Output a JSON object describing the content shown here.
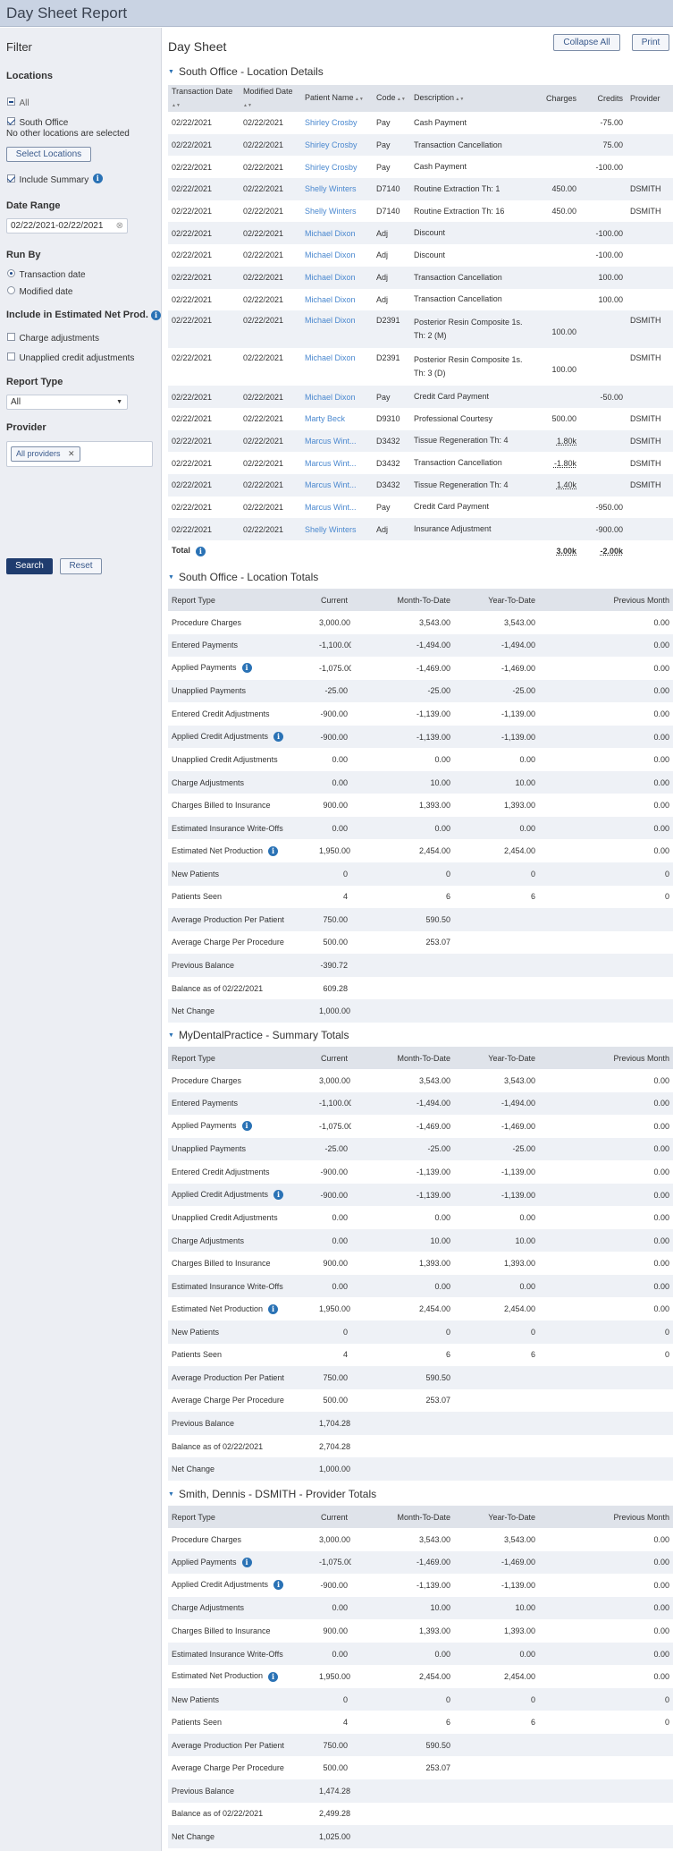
{
  "app": {
    "title": "Day Sheet Report"
  },
  "filter": {
    "title": "Filter",
    "locations_label": "Locations",
    "all_label": "All",
    "south_office_label": "South Office",
    "no_other_text": "No other locations are selected",
    "select_locations_label": "Select Locations",
    "include_summary_label": "Include Summary",
    "date_range_label": "Date Range",
    "date_range_value": "02/22/2021-02/22/2021",
    "run_by_label": "Run By",
    "transaction_date_label": "Transaction date",
    "modified_date_label": "Modified date",
    "include_net_label": "Include in Estimated Net Prod.",
    "charge_adj_label": "Charge adjustments",
    "unapplied_credit_label": "Unapplied credit adjustments",
    "report_type_label": "Report Type",
    "report_type_value": "All",
    "provider_label": "Provider",
    "provider_chip": "All providers",
    "search_label": "Search",
    "reset_label": "Reset"
  },
  "header": {
    "title": "Day Sheet",
    "collapse_label": "Collapse All",
    "print_label": "Print"
  },
  "details": {
    "title": "South Office - Location Details",
    "columns": [
      "Transaction Date",
      "Modified Date",
      "Patient Name",
      "Code",
      "Description",
      "Charges",
      "Credits",
      "Provider"
    ],
    "rows": [
      [
        "02/22/2021",
        "02/22/2021",
        "Shirley Crosby",
        "Pay",
        "Cash Payment",
        "",
        "-75.00",
        ""
      ],
      [
        "02/22/2021",
        "02/22/2021",
        "Shirley Crosby",
        "Pay",
        "Transaction Cancellation",
        "",
        "75.00",
        ""
      ],
      [
        "02/22/2021",
        "02/22/2021",
        "Shirley Crosby",
        "Pay",
        "Cash Payment",
        "",
        "-100.00",
        ""
      ],
      [
        "02/22/2021",
        "02/22/2021",
        "Shelly Winters",
        "D7140",
        "Routine Extraction Th: 1",
        "450.00",
        "",
        "DSMITH"
      ],
      [
        "02/22/2021",
        "02/22/2021",
        "Shelly Winters",
        "D7140",
        "Routine Extraction Th: 16",
        "450.00",
        "",
        "DSMITH"
      ],
      [
        "02/22/2021",
        "02/22/2021",
        "Michael Dixon",
        "Adj",
        "Discount",
        "",
        "-100.00",
        ""
      ],
      [
        "02/22/2021",
        "02/22/2021",
        "Michael Dixon",
        "Adj",
        "Discount",
        "",
        "-100.00",
        ""
      ],
      [
        "02/22/2021",
        "02/22/2021",
        "Michael Dixon",
        "Adj",
        "Transaction Cancellation",
        "",
        "100.00",
        ""
      ],
      [
        "02/22/2021",
        "02/22/2021",
        "Michael Dixon",
        "Adj",
        "Transaction Cancellation",
        "",
        "100.00",
        ""
      ],
      [
        "02/22/2021",
        "02/22/2021",
        "Michael Dixon",
        "D2391",
        "Posterior Resin Composite 1s. Th: 2 (M)",
        "100.00",
        "",
        "DSMITH"
      ],
      [
        "02/22/2021",
        "02/22/2021",
        "Michael Dixon",
        "D2391",
        "Posterior Resin Composite 1s. Th: 3 (D)",
        "100.00",
        "",
        "DSMITH"
      ],
      [
        "02/22/2021",
        "02/22/2021",
        "Michael Dixon",
        "Pay",
        "Credit Card Payment",
        "",
        "-50.00",
        ""
      ],
      [
        "02/22/2021",
        "02/22/2021",
        "Marty Beck",
        "D9310",
        "Professional Courtesy",
        "500.00",
        "",
        "DSMITH"
      ],
      [
        "02/22/2021",
        "02/22/2021",
        "Marcus Wint...",
        "D3432",
        "Tissue Regeneration Th: 4",
        "1.80k",
        "",
        "DSMITH"
      ],
      [
        "02/22/2021",
        "02/22/2021",
        "Marcus Wint...",
        "D3432",
        "Transaction Cancellation",
        "-1.80k",
        "",
        "DSMITH"
      ],
      [
        "02/22/2021",
        "02/22/2021",
        "Marcus Wint...",
        "D3432",
        "Tissue Regeneration Th: 4",
        "1.40k",
        "",
        "DSMITH"
      ],
      [
        "02/22/2021",
        "02/22/2021",
        "Marcus Wint...",
        "Pay",
        "Credit Card Payment",
        "",
        "-950.00",
        ""
      ],
      [
        "02/22/2021",
        "02/22/2021",
        "Shelly Winters",
        "Adj",
        "Insurance Adjustment",
        "",
        "-900.00",
        ""
      ]
    ],
    "total_label": "Total",
    "total_charges": "3.00k",
    "total_credits": "-2.00k"
  },
  "summary_columns": [
    "Report Type",
    "Current",
    "Month-To-Date",
    "Year-To-Date",
    "Previous Month"
  ],
  "location_totals": {
    "title": "South Office - Location Totals",
    "rows": [
      [
        "Procedure Charges",
        "3,000.00",
        "3,543.00",
        "3,543.00",
        "0.00"
      ],
      [
        "Entered Payments",
        "-1,100.00",
        "-1,494.00",
        "-1,494.00",
        "0.00"
      ],
      [
        "Applied Payments",
        "-1,075.00",
        "-1,469.00",
        "-1,469.00",
        "0.00"
      ],
      [
        "Unapplied Payments",
        "-25.00",
        "-25.00",
        "-25.00",
        "0.00"
      ],
      [
        "Entered Credit Adjustments",
        "-900.00",
        "-1,139.00",
        "-1,139.00",
        "0.00"
      ],
      [
        "Applied Credit Adjustments",
        "-900.00",
        "-1,139.00",
        "-1,139.00",
        "0.00"
      ],
      [
        "Unapplied Credit Adjustments",
        "0.00",
        "0.00",
        "0.00",
        "0.00"
      ],
      [
        "Charge Adjustments",
        "0.00",
        "10.00",
        "10.00",
        "0.00"
      ],
      [
        "Charges Billed to Insurance",
        "900.00",
        "1,393.00",
        "1,393.00",
        "0.00"
      ],
      [
        "Estimated Insurance Write-Offs",
        "0.00",
        "0.00",
        "0.00",
        "0.00"
      ],
      [
        "Estimated Net Production",
        "1,950.00",
        "2,454.00",
        "2,454.00",
        "0.00"
      ],
      [
        "New Patients",
        "0",
        "0",
        "0",
        "0"
      ],
      [
        "Patients Seen",
        "4",
        "6",
        "6",
        "0"
      ],
      [
        "Average Production Per Patient",
        "750.00",
        "590.50",
        "",
        ""
      ],
      [
        "Average Charge Per Procedure",
        "500.00",
        "253.07",
        "",
        ""
      ],
      [
        "Previous Balance",
        "-390.72",
        "",
        "",
        ""
      ],
      [
        "Balance as of 02/22/2021",
        "609.28",
        "",
        "",
        ""
      ],
      [
        "Net Change",
        "1,000.00",
        "",
        "",
        ""
      ]
    ]
  },
  "summary_totals": {
    "title": "MyDentalPractice - Summary Totals",
    "rows": [
      [
        "Procedure Charges",
        "3,000.00",
        "3,543.00",
        "3,543.00",
        "0.00"
      ],
      [
        "Entered Payments",
        "-1,100.00",
        "-1,494.00",
        "-1,494.00",
        "0.00"
      ],
      [
        "Applied Payments",
        "-1,075.00",
        "-1,469.00",
        "-1,469.00",
        "0.00"
      ],
      [
        "Unapplied Payments",
        "-25.00",
        "-25.00",
        "-25.00",
        "0.00"
      ],
      [
        "Entered Credit Adjustments",
        "-900.00",
        "-1,139.00",
        "-1,139.00",
        "0.00"
      ],
      [
        "Applied Credit Adjustments",
        "-900.00",
        "-1,139.00",
        "-1,139.00",
        "0.00"
      ],
      [
        "Unapplied Credit Adjustments",
        "0.00",
        "0.00",
        "0.00",
        "0.00"
      ],
      [
        "Charge Adjustments",
        "0.00",
        "10.00",
        "10.00",
        "0.00"
      ],
      [
        "Charges Billed to Insurance",
        "900.00",
        "1,393.00",
        "1,393.00",
        "0.00"
      ],
      [
        "Estimated Insurance Write-Offs",
        "0.00",
        "0.00",
        "0.00",
        "0.00"
      ],
      [
        "Estimated Net Production",
        "1,950.00",
        "2,454.00",
        "2,454.00",
        "0.00"
      ],
      [
        "New Patients",
        "0",
        "0",
        "0",
        "0"
      ],
      [
        "Patients Seen",
        "4",
        "6",
        "6",
        "0"
      ],
      [
        "Average Production Per Patient",
        "750.00",
        "590.50",
        "",
        ""
      ],
      [
        "Average Charge Per Procedure",
        "500.00",
        "253.07",
        "",
        ""
      ],
      [
        "Previous Balance",
        "1,704.28",
        "",
        "",
        ""
      ],
      [
        "Balance as of 02/22/2021",
        "2,704.28",
        "",
        "",
        ""
      ],
      [
        "Net Change",
        "1,000.00",
        "",
        "",
        ""
      ]
    ]
  },
  "provider_totals": {
    "title": "Smith, Dennis - DSMITH - Provider Totals",
    "rows": [
      [
        "Procedure Charges",
        "3,000.00",
        "3,543.00",
        "3,543.00",
        "0.00"
      ],
      [
        "Applied Payments",
        "-1,075.00",
        "-1,469.00",
        "-1,469.00",
        "0.00"
      ],
      [
        "Applied Credit Adjustments",
        "-900.00",
        "-1,139.00",
        "-1,139.00",
        "0.00"
      ],
      [
        "Charge Adjustments",
        "0.00",
        "10.00",
        "10.00",
        "0.00"
      ],
      [
        "Charges Billed to Insurance",
        "900.00",
        "1,393.00",
        "1,393.00",
        "0.00"
      ],
      [
        "Estimated Insurance Write-Offs",
        "0.00",
        "0.00",
        "0.00",
        "0.00"
      ],
      [
        "Estimated Net Production",
        "1,950.00",
        "2,454.00",
        "2,454.00",
        "0.00"
      ],
      [
        "New Patients",
        "0",
        "0",
        "0",
        "0"
      ],
      [
        "Patients Seen",
        "4",
        "6",
        "6",
        "0"
      ],
      [
        "Average Production Per Patient",
        "750.00",
        "590.50",
        "",
        ""
      ],
      [
        "Average Charge Per Procedure",
        "500.00",
        "253.07",
        "",
        ""
      ],
      [
        "Previous Balance",
        "1,474.28",
        "",
        "",
        ""
      ],
      [
        "Balance as of 02/22/2021",
        "2,499.28",
        "",
        "",
        ""
      ],
      [
        "Net Change",
        "1,025.00",
        "",
        "",
        ""
      ]
    ]
  },
  "info_rows": [
    "Applied Payments",
    "Applied Credit Adjustments",
    "Estimated Net Production"
  ]
}
